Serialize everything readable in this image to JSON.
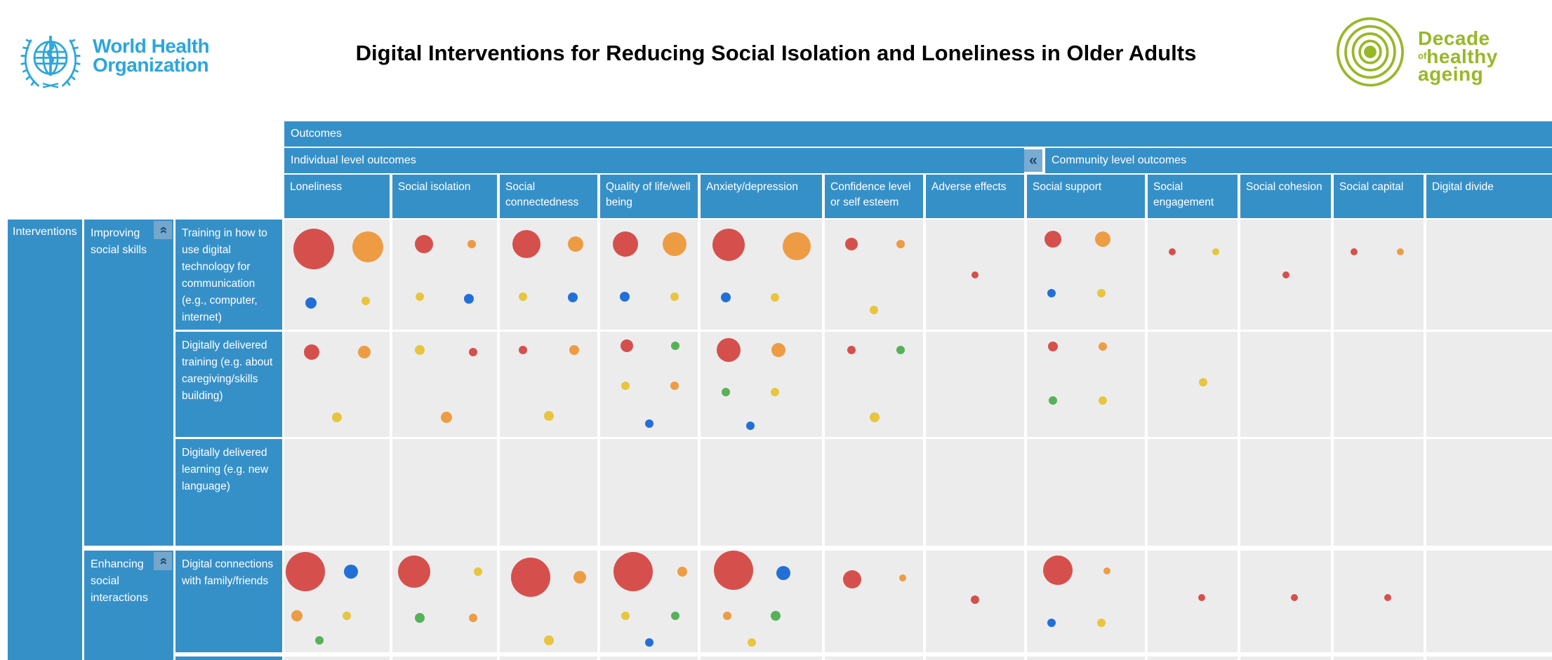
{
  "header": {
    "title": "Digital Interventions for Reducing Social Isolation and Loneliness in Older Adults",
    "who_logo": {
      "line1": "World Health",
      "line2": "Organization"
    },
    "decade_logo": {
      "word1": "Decade",
      "word2_small": "of",
      "word2": "healthy",
      "word3": "ageing"
    }
  },
  "matrix": {
    "outcomes_label": "Outcomes",
    "interventions_label": "Interventions",
    "bands": {
      "individual": "Individual level outcomes",
      "community": "Community level outcomes"
    },
    "collapse_icon": "«",
    "group_collapse_icon": "«"
  },
  "colors": {
    "header_blue": "#3690C8",
    "cell_gray": "#ECECEC",
    "who_blue": "#2BA6DE",
    "decade_green": "#97B826",
    "icon_bg": "#79ACD2",
    "icon_glyph": "#1A4A71",
    "bubbles": {
      "red": "#D5504C",
      "orange": "#EE9C43",
      "yellow": "#E8C53E",
      "green": "#57B15A",
      "blue": "#2270D7"
    }
  },
  "chart_data": {
    "type": "bubble-matrix",
    "title": "Digital Interventions for Reducing Social Isolation and Loneliness in Older Adults",
    "row_axis": "Interventions",
    "col_axis": "Outcomes",
    "column_groups": [
      {
        "label": "Individual level outcomes",
        "first_col": 0,
        "last_col": 6
      },
      {
        "label": "Community level outcomes",
        "first_col": 7,
        "last_col": 11
      }
    ],
    "columns": [
      "Loneliness",
      "Social isolation",
      "Social connectedness",
      "Quality of life/well being",
      "Anxiety/depression",
      "Confidence level or self esteem",
      "Adverse effects",
      "Social support",
      "Social engagement",
      "Social cohesion",
      "Social capital",
      "Digital divide"
    ],
    "bubble_format": "[color, radius_px, x_percent_of_cell, y_percent_of_cell]",
    "rows": [
      {
        "group": "Improving social skills",
        "intervention": "Training in how to use digital technology for communication (e.g., computer, internet)",
        "cells": [
          [
            [
              "red",
              29,
              28,
              27
            ],
            [
              "orange",
              22,
              79,
              25
            ],
            [
              "blue",
              8,
              25,
              76
            ],
            [
              "yellow",
              6,
              77,
              74
            ]
          ],
          [
            [
              "red",
              13,
              30,
              22
            ],
            [
              "orange",
              6,
              76,
              22
            ],
            [
              "yellow",
              6,
              26,
              70
            ],
            [
              "blue",
              7,
              73,
              72
            ]
          ],
          [
            [
              "red",
              20,
              27,
              22
            ],
            [
              "orange",
              11,
              78,
              22
            ],
            [
              "yellow",
              6,
              24,
              70
            ],
            [
              "blue",
              7,
              75,
              71
            ]
          ],
          [
            [
              "red",
              18,
              26,
              22
            ],
            [
              "orange",
              17,
              76,
              22
            ],
            [
              "blue",
              7,
              25,
              70
            ],
            [
              "yellow",
              6,
              76,
              70
            ]
          ],
          [
            [
              "red",
              23,
              23,
              23
            ],
            [
              "orange",
              20,
              79,
              24
            ],
            [
              "blue",
              7,
              21,
              71
            ],
            [
              "yellow",
              6,
              61,
              71
            ]
          ],
          [
            [
              "red",
              9,
              27,
              22
            ],
            [
              "orange",
              6,
              77,
              22
            ],
            [
              "yellow",
              6,
              50,
              82
            ]
          ],
          [
            [
              "red",
              5,
              50,
              50
            ]
          ],
          [
            [
              "red",
              12,
              22,
              18
            ],
            [
              "orange",
              11,
              64,
              18
            ],
            [
              "blue",
              6,
              21,
              67
            ],
            [
              "yellow",
              6,
              63,
              67
            ]
          ],
          [
            [
              "red",
              5,
              27,
              29
            ],
            [
              "yellow",
              5,
              76,
              29
            ]
          ],
          [
            [
              "red",
              5,
              50,
              50
            ]
          ],
          [
            [
              "red",
              5,
              23,
              29
            ],
            [
              "orange",
              5,
              74,
              29
            ]
          ],
          []
        ]
      },
      {
        "group": "Improving social skills",
        "intervention": "Digitally delivered training (e.g. about caregiving/skills building)",
        "cells": [
          [
            [
              "red",
              11,
              26,
              19
            ],
            [
              "orange",
              9,
              76,
              19
            ],
            [
              "yellow",
              7,
              50,
              81
            ]
          ],
          [
            [
              "yellow",
              7,
              26,
              17
            ],
            [
              "red",
              6,
              77,
              19
            ],
            [
              "orange",
              8,
              52,
              81
            ]
          ],
          [
            [
              "red",
              6,
              24,
              17
            ],
            [
              "orange",
              7,
              76,
              17
            ],
            [
              "yellow",
              7,
              50,
              80
            ]
          ],
          [
            [
              "red",
              9,
              27,
              13
            ],
            [
              "green",
              6,
              77,
              13
            ],
            [
              "yellow",
              6,
              26,
              51
            ],
            [
              "orange",
              6,
              76,
              51
            ],
            [
              "blue",
              6,
              50,
              87
            ]
          ],
          [
            [
              "red",
              17,
              23,
              17
            ],
            [
              "orange",
              10,
              64,
              17
            ],
            [
              "green",
              6,
              21,
              57
            ],
            [
              "yellow",
              6,
              61,
              57
            ],
            [
              "blue",
              6,
              41,
              89
            ]
          ],
          [
            [
              "red",
              6,
              27,
              17
            ],
            [
              "green",
              6,
              77,
              17
            ],
            [
              "yellow",
              7,
              51,
              81
            ]
          ],
          [],
          [
            [
              "red",
              7,
              22,
              14
            ],
            [
              "orange",
              6,
              64,
              14
            ],
            [
              "green",
              6,
              22,
              65
            ],
            [
              "yellow",
              6,
              64,
              65
            ]
          ],
          [
            [
              "yellow",
              6,
              62,
              48
            ]
          ],
          [],
          [],
          []
        ]
      },
      {
        "group": "Improving social skills",
        "intervention": "Digitally delivered learning (e.g. new language)",
        "cells": [
          [],
          [],
          [],
          [],
          [],
          [],
          [],
          [],
          [],
          [],
          [],
          []
        ]
      },
      {
        "group": "Enhancing social interactions",
        "intervention": "Digital connections with family/friends",
        "cells": [
          [
            [
              "red",
              28,
              20,
              21
            ],
            [
              "blue",
              10,
              63,
              21
            ],
            [
              "orange",
              8,
              12,
              64
            ],
            [
              "yellow",
              6,
              59,
              64
            ],
            [
              "green",
              6,
              33,
              88
            ]
          ],
          [
            [
              "red",
              23,
              21,
              21
            ],
            [
              "yellow",
              6,
              82,
              21
            ],
            [
              "green",
              7,
              26,
              66
            ],
            [
              "orange",
              6,
              77,
              66
            ]
          ],
          [
            [
              "red",
              28,
              32,
              26
            ],
            [
              "orange",
              9,
              82,
              26
            ],
            [
              "yellow",
              7,
              50,
              88
            ]
          ],
          [
            [
              "red",
              28,
              34,
              21
            ],
            [
              "orange",
              7,
              84,
              21
            ],
            [
              "yellow",
              6,
              26,
              64
            ],
            [
              "green",
              6,
              77,
              64
            ],
            [
              "blue",
              6,
              50,
              90
            ]
          ],
          [
            [
              "red",
              28,
              27,
              19
            ],
            [
              "blue",
              10,
              68,
              22
            ],
            [
              "orange",
              6,
              22,
              64
            ],
            [
              "green",
              7,
              62,
              64
            ],
            [
              "yellow",
              6,
              42,
              90
            ]
          ],
          [
            [
              "red",
              13,
              28,
              28
            ],
            [
              "orange",
              5,
              79,
              27
            ]
          ],
          [
            [
              "red",
              6,
              50,
              48
            ]
          ],
          [
            [
              "red",
              21,
              26,
              19
            ],
            [
              "orange",
              5,
              68,
              20
            ],
            [
              "blue",
              6,
              21,
              71
            ],
            [
              "yellow",
              6,
              63,
              71
            ]
          ],
          [
            [
              "red",
              5,
              60,
              46
            ]
          ],
          [
            [
              "red",
              5,
              60,
              46
            ]
          ],
          [
            [
              "red",
              5,
              60,
              46
            ]
          ],
          []
        ]
      },
      {
        "group": "Enhancing social interactions",
        "intervention": "",
        "clipped": true,
        "cells": [
          [],
          [],
          [],
          [],
          [],
          [],
          [],
          [],
          [],
          [],
          [],
          []
        ]
      }
    ]
  }
}
